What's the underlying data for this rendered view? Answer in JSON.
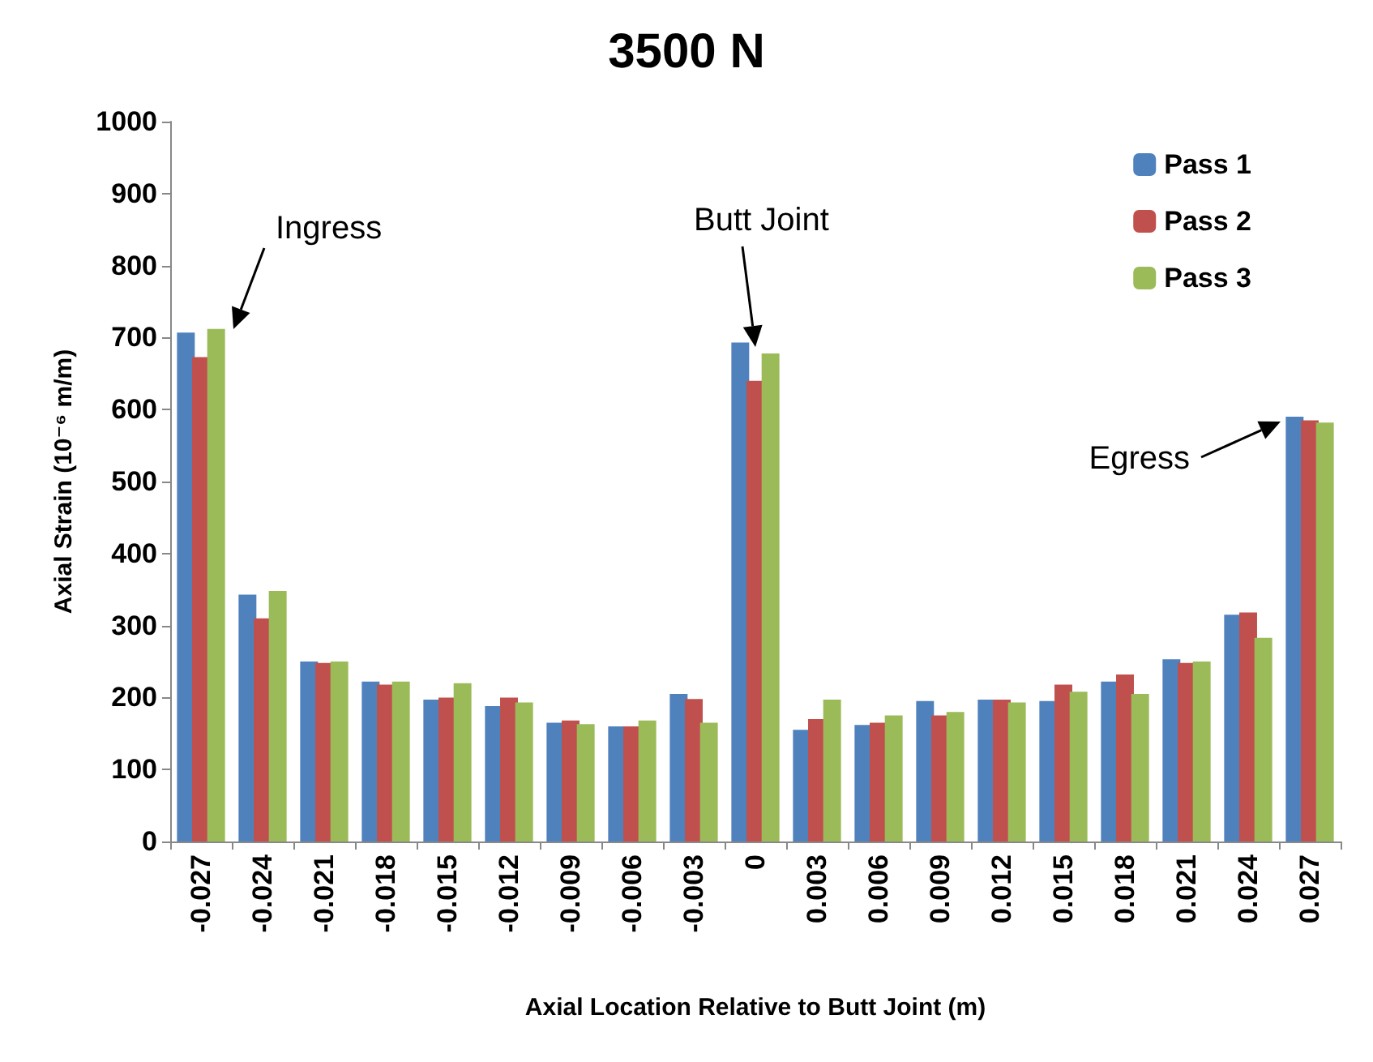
{
  "chart_data": {
    "type": "bar",
    "title": "3500 N",
    "xlabel": "Axial Location Relative to Butt Joint (m)",
    "ylabel": "Axial Strain (10⁻⁶ m/m)",
    "categories": [
      "-0.027",
      "-0.024",
      "-0.021",
      "-0.018",
      "-0.015",
      "-0.012",
      "-0.009",
      "-0.006",
      "-0.003",
      "0",
      "0.003",
      "0.006",
      "0.009",
      "0.012",
      "0.015",
      "0.018",
      "0.021",
      "0.024",
      "0.027"
    ],
    "series": [
      {
        "name": "Pass 1",
        "color": "#4f81bd",
        "values": [
          707,
          343,
          250,
          222,
          197,
          188,
          165,
          160,
          205,
          693,
          155,
          162,
          195,
          197,
          195,
          222,
          253,
          315,
          590
        ]
      },
      {
        "name": "Pass 2",
        "color": "#c0504d",
        "values": [
          673,
          310,
          248,
          218,
          200,
          200,
          168,
          160,
          198,
          640,
          170,
          165,
          175,
          197,
          218,
          232,
          248,
          318,
          585
        ]
      },
      {
        "name": "Pass 3",
        "color": "#9bbb59",
        "values": [
          712,
          348,
          250,
          222,
          220,
          193,
          163,
          168,
          165,
          678,
          197,
          175,
          180,
          193,
          208,
          205,
          250,
          283,
          582
        ]
      }
    ],
    "ylim": [
      0,
      1000
    ],
    "yticks": [
      0,
      100,
      200,
      300,
      400,
      500,
      600,
      700,
      800,
      900,
      {
        "value": 1000,
        "label": "1000"
      }
    ],
    "grid": false,
    "legend": "top right",
    "annotations": [
      "Ingress",
      "Butt Joint",
      "Egress"
    ]
  }
}
